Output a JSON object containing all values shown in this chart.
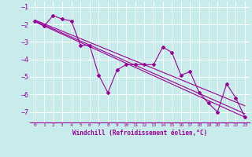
{
  "title": "",
  "xlabel": "Windchill (Refroidissement éolien,°C)",
  "bg_color": "#c8ecec",
  "line_color": "#990099",
  "grid_color": "#ffffff",
  "xlim": [
    -0.5,
    23.5
  ],
  "ylim": [
    -7.6,
    -0.7
  ],
  "yticks": [
    -7,
    -6,
    -5,
    -4,
    -3,
    -2,
    -1
  ],
  "xticks": [
    0,
    1,
    2,
    3,
    4,
    5,
    6,
    7,
    8,
    9,
    10,
    11,
    12,
    13,
    14,
    15,
    16,
    17,
    18,
    19,
    20,
    21,
    22,
    23
  ],
  "data_x": [
    0,
    1,
    2,
    3,
    4,
    5,
    6,
    7,
    8,
    9,
    10,
    11,
    12,
    13,
    14,
    15,
    16,
    17,
    18,
    19,
    20,
    21,
    22,
    23
  ],
  "data_y": [
    -1.8,
    -2.1,
    -1.5,
    -1.7,
    -1.8,
    -3.2,
    -3.2,
    -4.9,
    -5.9,
    -4.6,
    -4.3,
    -4.3,
    -4.3,
    -4.3,
    -3.3,
    -3.6,
    -4.9,
    -4.7,
    -5.9,
    -6.5,
    -7.0,
    -5.4,
    -6.2,
    -7.3
  ],
  "trend1_x": [
    0,
    23
  ],
  "trend1_y": [
    -1.8,
    -7.1
  ],
  "trend2_x": [
    0,
    23
  ],
  "trend2_y": [
    -1.75,
    -6.65
  ],
  "trend3_x": [
    0,
    23
  ],
  "trend3_y": [
    -1.85,
    -7.3
  ]
}
